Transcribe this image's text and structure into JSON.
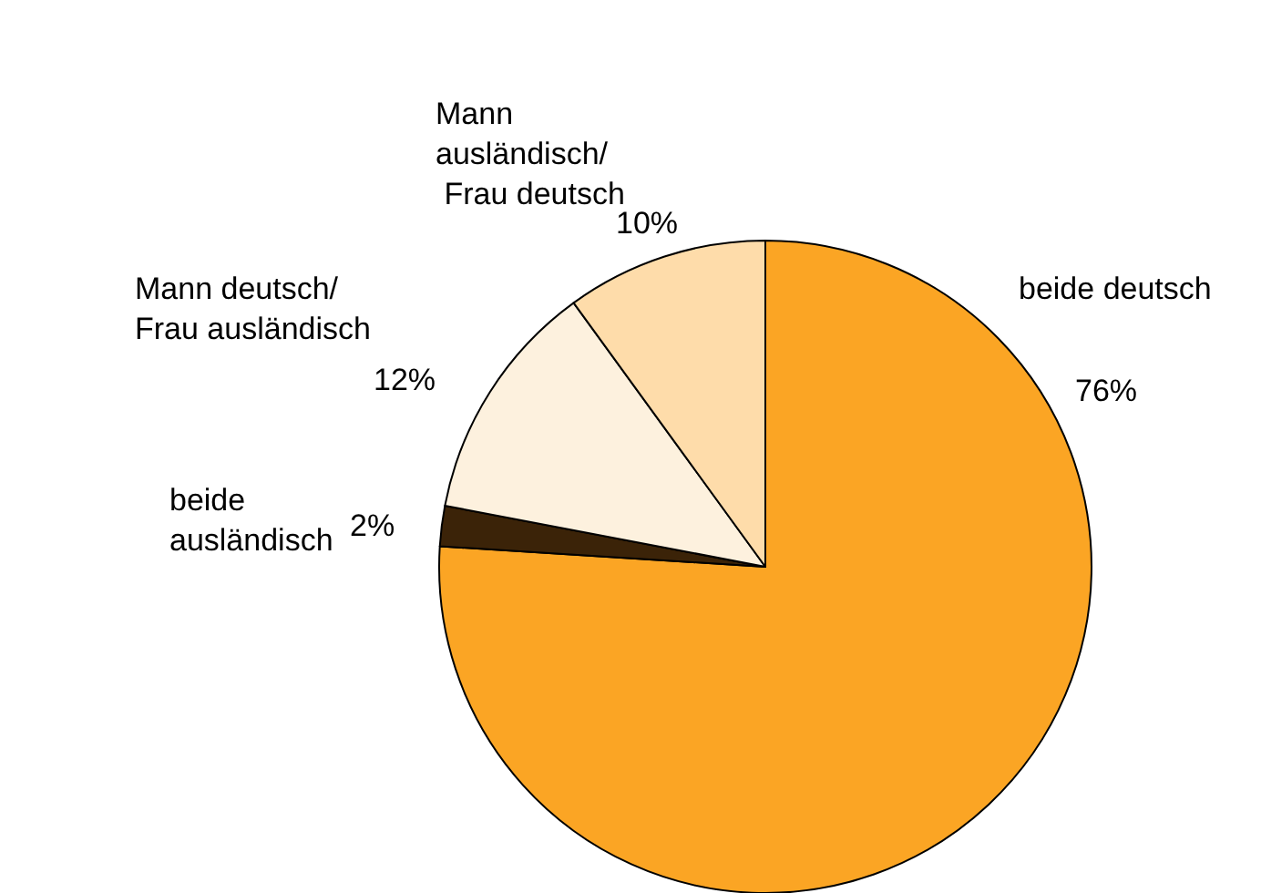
{
  "chart_data": {
    "type": "pie",
    "categories": [
      "beide deutsch",
      "beide\nausländisch",
      "Mann deutsch/\nFrau ausländisch",
      "Mann\nausländisch/\n Frau deutsch"
    ],
    "values": [
      76,
      2,
      12,
      10
    ],
    "colors": [
      "#fba524",
      "#3b2308",
      "#fdf1de",
      "#fedcaa"
    ],
    "value_labels": [
      "76%",
      "2%",
      "12%",
      "10%"
    ],
    "legend": false
  }
}
